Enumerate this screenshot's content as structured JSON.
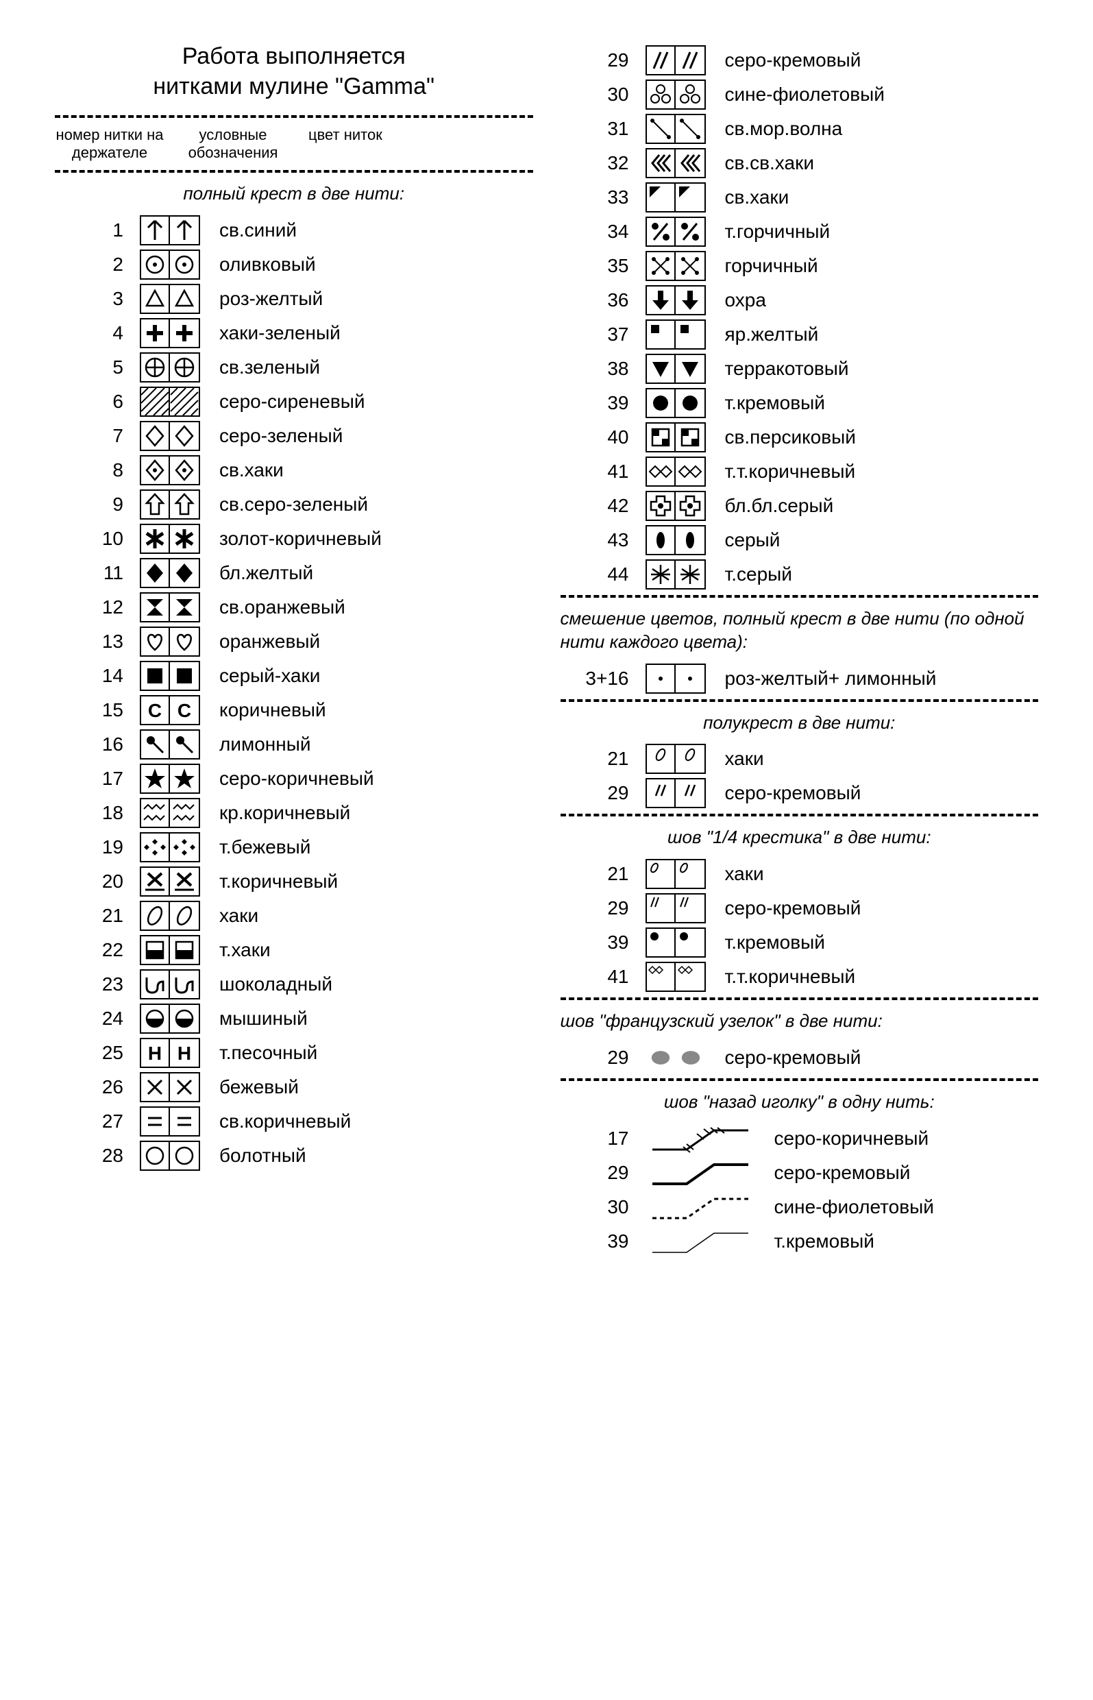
{
  "title_line1": "Работа выполняется",
  "title_line2": "нитками мулине \"Gamma\"",
  "header_col1": "номер нитки на держателе",
  "header_col2": "условные обозначения",
  "header_col3": "цвет ниток",
  "section_full_cross": "полный крест в две нити:",
  "section_blend": "смешение цветов, полный крест в две нити (по одной нити каждого цвета):",
  "section_halfcross": "полукрест в две нити:",
  "section_quarter": "шов \"1/4 крестика\" в две нити:",
  "section_french": "шов \"французский узелок\" в две нити:",
  "section_backstitch": "шов \"назад иголку\" в одну нить:",
  "left_rows": [
    {
      "n": "1",
      "s": "arrow-up",
      "c": "св.синий"
    },
    {
      "n": "2",
      "s": "circle-dot",
      "c": "оливковый"
    },
    {
      "n": "3",
      "s": "triangle-up",
      "c": "роз-желтый"
    },
    {
      "n": "4",
      "s": "plus-bold",
      "c": "хаки-зеленый"
    },
    {
      "n": "5",
      "s": "circle-plus",
      "c": "св.зеленый"
    },
    {
      "n": "6",
      "s": "hatch",
      "c": "серо-сиреневый"
    },
    {
      "n": "7",
      "s": "diamond-outline",
      "c": "серо-зеленый"
    },
    {
      "n": "8",
      "s": "diamond-dot",
      "c": "св.хаки"
    },
    {
      "n": "9",
      "s": "arrow-up-outline",
      "c": "св.серо-зеленый"
    },
    {
      "n": "10",
      "s": "asterisk",
      "c": "золот-коричневый"
    },
    {
      "n": "11",
      "s": "diamond-fill",
      "c": "бл.желтый"
    },
    {
      "n": "12",
      "s": "hourglass",
      "c": "св.оранжевый"
    },
    {
      "n": "13",
      "s": "heart",
      "c": "оранжевый"
    },
    {
      "n": "14",
      "s": "square-fill",
      "c": "серый-хаки"
    },
    {
      "n": "15",
      "s": "letter-c",
      "c": "коричневый"
    },
    {
      "n": "16",
      "s": "pin",
      "c": "лимонный"
    },
    {
      "n": "17",
      "s": "star-fill",
      "c": "серо-коричневый"
    },
    {
      "n": "18",
      "s": "zigzag",
      "c": "кр.коричневый"
    },
    {
      "n": "19",
      "s": "four-dots",
      "c": "т.бежевый"
    },
    {
      "n": "20",
      "s": "x-underline",
      "c": "т.коричневый"
    },
    {
      "n": "21",
      "s": "oval-slash",
      "c": "хаки"
    },
    {
      "n": "22",
      "s": "square-half-bottom",
      "c": "т.хаки"
    },
    {
      "n": "23",
      "s": "wave-u",
      "c": "шоколадный"
    },
    {
      "n": "24",
      "s": "circle-half-bottom",
      "c": "мышиный"
    },
    {
      "n": "25",
      "s": "letter-h",
      "c": "т.песочный"
    },
    {
      "n": "26",
      "s": "x",
      "c": "бежевый"
    },
    {
      "n": "27",
      "s": "equals",
      "c": "св.коричневый"
    },
    {
      "n": "28",
      "s": "circle",
      "c": "болотный"
    }
  ],
  "right_rows": [
    {
      "n": "29",
      "s": "double-slash",
      "c": "серо-кремовый"
    },
    {
      "n": "30",
      "s": "clover",
      "c": "сине-фиолетовый"
    },
    {
      "n": "31",
      "s": "diag-dots",
      "c": "св.мор.волна"
    },
    {
      "n": "32",
      "s": "triple-chevron",
      "c": "св.св.хаки"
    },
    {
      "n": "33",
      "s": "corner-tl",
      "c": "св.хаки"
    },
    {
      "n": "34",
      "s": "percent",
      "c": "т.горчичный"
    },
    {
      "n": "35",
      "s": "x-dots",
      "c": "горчичный"
    },
    {
      "n": "36",
      "s": "arrow-down-fill",
      "c": "охра"
    },
    {
      "n": "37",
      "s": "small-square",
      "c": "яр.желтый"
    },
    {
      "n": "38",
      "s": "triangle-down-fill",
      "c": "терракотовый"
    },
    {
      "n": "39",
      "s": "circle-fill",
      "c": "т.кремовый"
    },
    {
      "n": "40",
      "s": "square-dot-corner",
      "c": "св.персиковый"
    },
    {
      "n": "41",
      "s": "diamond-chain",
      "c": "т.т.коричневый"
    },
    {
      "n": "42",
      "s": "plus-blob",
      "c": "бл.бл.серый"
    },
    {
      "n": "43",
      "s": "oval-fill",
      "c": "серый"
    },
    {
      "n": "44",
      "s": "snowflake",
      "c": "т.серый"
    }
  ],
  "blend_row": {
    "n": "3+16",
    "s": "dot",
    "c": "роз-желтый+ лимонный"
  },
  "halfcross_rows": [
    {
      "n": "21",
      "s": "oval-slash-small",
      "c": "хаки"
    },
    {
      "n": "29",
      "s": "double-slash-small",
      "c": "серо-кремовый"
    }
  ],
  "quarter_rows": [
    {
      "n": "21",
      "s": "oval-slash-tl",
      "c": "хаки"
    },
    {
      "n": "29",
      "s": "double-slash-tl",
      "c": "серо-кремовый"
    },
    {
      "n": "39",
      "s": "circle-fill-tl",
      "c": "т.кремовый"
    },
    {
      "n": "41",
      "s": "diamond-chain-tl",
      "c": "т.т.коричневый"
    }
  ],
  "french_row": {
    "n": "29",
    "s": "gray-dot",
    "c": "серо-кремовый"
  },
  "backstitch_rows": [
    {
      "n": "17",
      "s": "bs-cross",
      "c": "серо-коричневый"
    },
    {
      "n": "29",
      "s": "bs-solid",
      "c": "серо-кремовый"
    },
    {
      "n": "30",
      "s": "bs-dashed",
      "c": "сине-фиолетовый"
    },
    {
      "n": "39",
      "s": "bs-thin",
      "c": "т.кремовый"
    }
  ]
}
